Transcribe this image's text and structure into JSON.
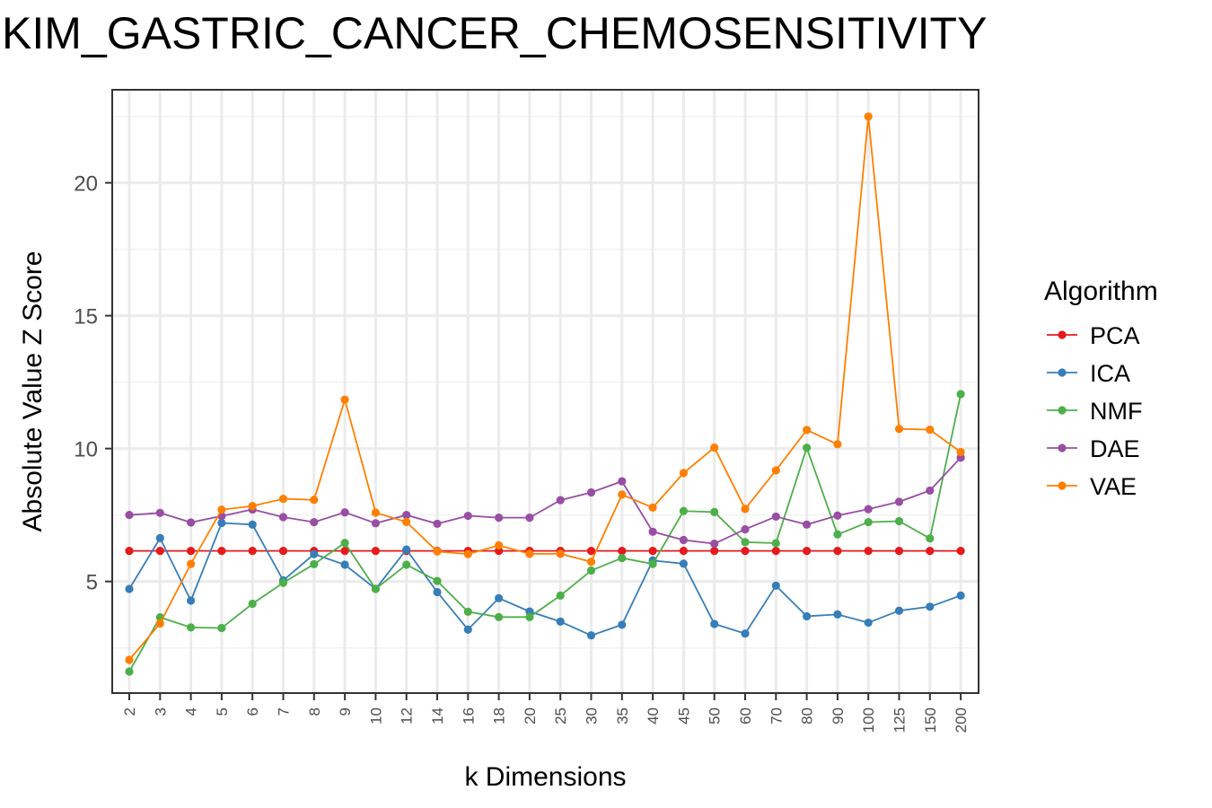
{
  "chart_data": {
    "type": "line",
    "title": "KIM_GASTRIC_CANCER_CHEMOSENSITIVITY",
    "xlabel": "k Dimensions",
    "ylabel": "Absolute Value Z Score",
    "categories": [
      "2",
      "3",
      "4",
      "5",
      "6",
      "7",
      "8",
      "9",
      "10",
      "12",
      "14",
      "16",
      "18",
      "20",
      "25",
      "30",
      "35",
      "40",
      "45",
      "50",
      "60",
      "70",
      "80",
      "90",
      "100",
      "125",
      "150",
      "200"
    ],
    "yticks": [
      5,
      10,
      15,
      20
    ],
    "ylim": [
      0.8,
      23.5
    ],
    "grid": true,
    "legend": {
      "title": "Algorithm",
      "position": "right"
    },
    "series": [
      {
        "name": "PCA",
        "color": "#E41A1C",
        "values": [
          6.15,
          6.15,
          6.15,
          6.15,
          6.15,
          6.15,
          6.15,
          6.15,
          6.15,
          6.15,
          6.15,
          6.15,
          6.15,
          6.15,
          6.15,
          6.15,
          6.15,
          6.15,
          6.15,
          6.15,
          6.15,
          6.15,
          6.15,
          6.15,
          6.15,
          6.15,
          6.15,
          6.15
        ]
      },
      {
        "name": "ICA",
        "color": "#377EB8",
        "values": [
          4.72,
          6.63,
          4.28,
          7.2,
          7.14,
          5.04,
          6.03,
          5.63,
          4.72,
          6.2,
          4.6,
          3.19,
          4.37,
          3.87,
          3.49,
          2.97,
          3.37,
          5.79,
          5.67,
          3.4,
          3.04,
          4.84,
          3.69,
          3.76,
          3.45,
          3.9,
          4.05,
          4.47
        ]
      },
      {
        "name": "NMF",
        "color": "#4DAF4A",
        "values": [
          1.61,
          3.65,
          3.27,
          3.25,
          4.16,
          4.95,
          5.65,
          6.45,
          4.72,
          5.63,
          5.02,
          3.86,
          3.66,
          3.66,
          4.47,
          5.41,
          5.88,
          5.66,
          7.65,
          7.61,
          6.48,
          6.44,
          10.03,
          6.77,
          7.23,
          7.27,
          6.62,
          12.05
        ]
      },
      {
        "name": "DAE",
        "color": "#984EA3",
        "values": [
          7.5,
          7.58,
          7.22,
          7.46,
          7.71,
          7.42,
          7.23,
          7.6,
          7.19,
          7.5,
          7.17,
          7.47,
          7.4,
          7.4,
          8.06,
          8.35,
          8.77,
          6.87,
          6.56,
          6.42,
          6.96,
          7.44,
          7.14,
          7.48,
          7.72,
          8.0,
          8.42,
          9.66
        ]
      },
      {
        "name": "VAE",
        "color": "#FF7F00",
        "values": [
          2.05,
          3.42,
          5.66,
          7.7,
          7.84,
          8.11,
          8.07,
          11.84,
          7.59,
          7.24,
          6.13,
          6.03,
          6.36,
          6.04,
          6.04,
          5.74,
          8.27,
          7.78,
          9.08,
          10.04,
          7.73,
          9.18,
          10.7,
          10.16,
          22.49,
          10.74,
          10.71,
          9.87
        ]
      }
    ]
  }
}
